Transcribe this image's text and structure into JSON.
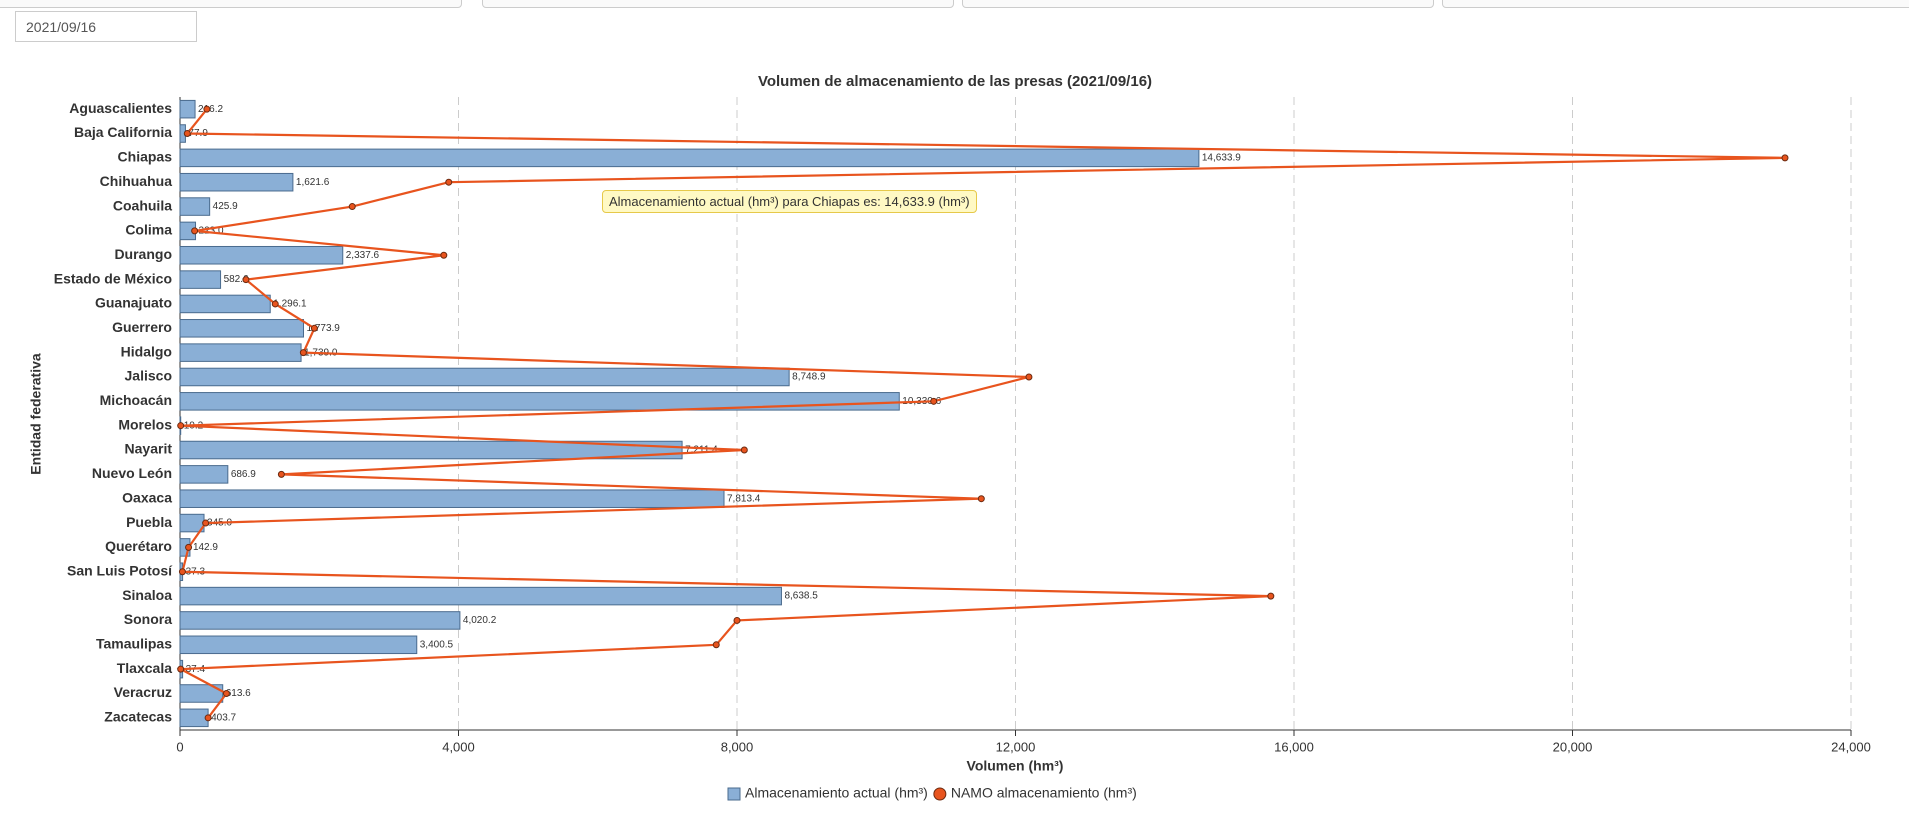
{
  "date_filter": "2021/09/16",
  "tooltip": "Almacenamiento actual (hm³) para Chiapas es: 14,633.9 (hm³)",
  "chart_data": {
    "type": "bar",
    "orientation": "horizontal",
    "title": "Volumen de almacenamiento de las presas (2021/09/16)",
    "x_label": "Volumen (hm³)",
    "y_label": "Entidad federativa",
    "categories": [
      "Aguascalientes",
      "Baja California",
      "Chiapas",
      "Chihuahua",
      "Coahuila",
      "Colima",
      "Durango",
      "Estado de México",
      "Guanajuato",
      "Guerrero",
      "Hidalgo",
      "Jalisco",
      "Michoacán",
      "Morelos",
      "Nayarit",
      "Nuevo León",
      "Oaxaca",
      "Puebla",
      "Querétaro",
      "San Luis Potosí",
      "Sinaloa",
      "Sonora",
      "Tamaulipas",
      "Tlaxcala",
      "Veracruz",
      "Zacatecas"
    ],
    "series": [
      {
        "name": "Almacenamiento actual (hm³)",
        "color": "#8aafd6",
        "type": "bar",
        "values": [
          216.2,
          77.9,
          14633.9,
          1621.6,
          425.9,
          223.0,
          2337.6,
          582.6,
          1296.1,
          1773.9,
          1739.0,
          8748.9,
          10330.6,
          10.2,
          7211.4,
          686.9,
          7813.4,
          345.0,
          142.9,
          37.3,
          8638.5,
          4020.2,
          3400.5,
          37.4,
          613.6,
          403.7
        ],
        "value_labels": [
          "216.2",
          "77.9",
          "14,633.9",
          "1,621.6",
          "425.9",
          "223.0",
          "2,337.6",
          "582.6",
          "1,296.1",
          "1,773.9",
          "1,739.0",
          "8,748.9",
          "10,330.6",
          "10.2",
          "7,211.4",
          "686.9",
          "7,813.4",
          "345.0",
          "142.9",
          "37.3",
          "8,638.5",
          "4,020.2",
          "3,400.5",
          "37.4",
          "613.6",
          "403.7"
        ]
      },
      {
        "name": "NAMO almacenamiento (hm³)",
        "color": "#e8541e",
        "type": "line",
        "values": [
          386,
          105,
          23052,
          3860,
          2474,
          210,
          3789,
          947,
          1368,
          1930,
          1772,
          12193,
          10825,
          10,
          8105,
          1456,
          11509,
          368,
          123,
          35,
          15667,
          8000,
          7702,
          10,
          667,
          404
        ]
      }
    ],
    "xlim": [
      0,
      24000
    ],
    "xticks": [
      0,
      {
        "value": 4000,
        "label": "4,000"
      },
      {
        "value": 8000,
        "label": "8,000"
      },
      {
        "value": 12000,
        "label": "12,000"
      },
      {
        "value": 16000,
        "label": "16,000"
      },
      {
        "value": 20000,
        "label": "20,000"
      },
      {
        "value": 24000,
        "label": "24,000"
      }
    ],
    "grid": true,
    "legend": "bottom"
  }
}
